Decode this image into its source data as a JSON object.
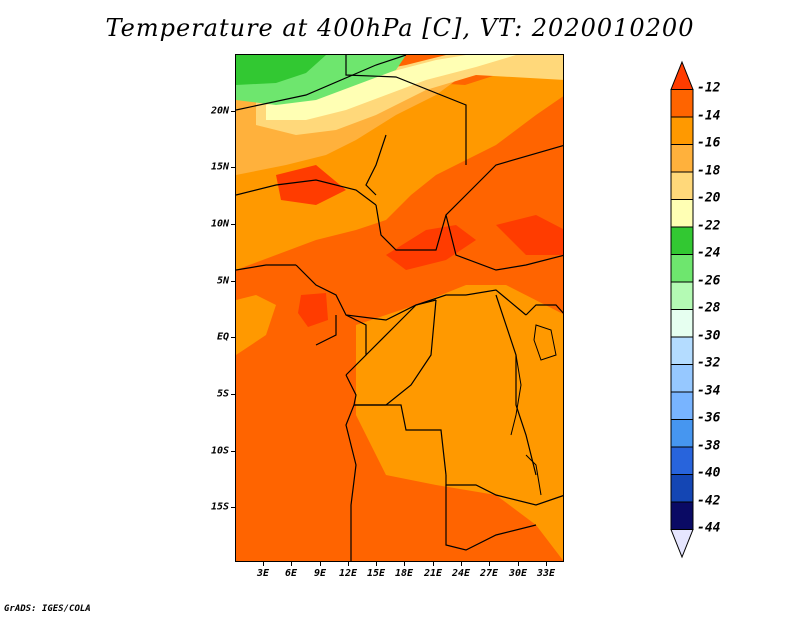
{
  "title": "Temperature at 400hPa [C], VT: 2020010200",
  "credit": "GrADS: IGES/COLA",
  "map": {
    "lat_labels": [
      "20N",
      "15N",
      "10N",
      "5N",
      "EQ",
      "5S",
      "10S",
      "15S"
    ],
    "lon_labels": [
      "3E",
      "6E",
      "9E",
      "12E",
      "15E",
      "18E",
      "21E",
      "24E",
      "27E",
      "30E",
      "33E"
    ],
    "lat_values": [
      20,
      15,
      10,
      5,
      0,
      -5,
      -10,
      -15
    ],
    "lon_values": [
      3,
      6,
      9,
      12,
      15,
      18,
      21,
      24,
      27,
      30,
      33
    ],
    "lon_range": [
      0,
      35
    ],
    "lat_range": [
      -20,
      25
    ]
  },
  "colorbar": {
    "labels": [
      "-12",
      "-14",
      "-16",
      "-18",
      "-20",
      "-22",
      "-24",
      "-26",
      "-28",
      "-30",
      "-32",
      "-34",
      "-36",
      "-38",
      "-40",
      "-42",
      "-44"
    ],
    "colors": [
      "#ff3c00",
      "#ff6400",
      "#ff9900",
      "#ffb13c",
      "#ffd87a",
      "#ffffb4",
      "#32c832",
      "#6ee66e",
      "#b4fab4",
      "#e6fff0",
      "#b4dcff",
      "#96c8ff",
      "#78b4ff",
      "#4696f0",
      "#2864dc",
      "#1446b4",
      "#0a0a64",
      "#e6e6ff"
    ]
  }
}
